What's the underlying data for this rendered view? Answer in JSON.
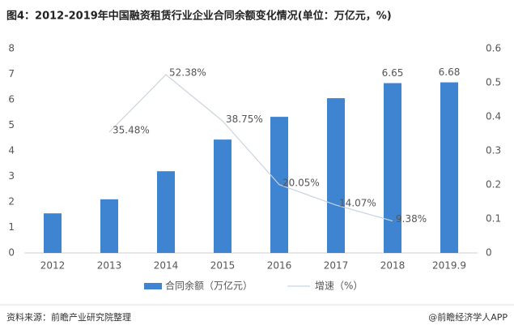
{
  "chart_data": {
    "type": "bar-line",
    "title": "图4：2012-2019年中国融资租赁行业企业合同余额变化情况(单位：万亿元，%)",
    "categories": [
      "2012",
      "2013",
      "2014",
      "2015",
      "2016",
      "2017",
      "2018",
      "2019.9"
    ],
    "series": [
      {
        "name": "合同余额（万亿元）",
        "type": "bar",
        "color": "#3f84d0",
        "values": [
          1.55,
          2.1,
          3.2,
          4.44,
          5.33,
          6.06,
          6.65,
          6.68
        ],
        "value_labels": [
          null,
          null,
          null,
          null,
          null,
          null,
          "6.65",
          "6.68"
        ]
      },
      {
        "name": "增速（%）",
        "type": "line",
        "axis": "y2",
        "color": "#c8d3e0",
        "values": [
          null,
          0.3548,
          0.5238,
          0.3875,
          0.2005,
          0.1407,
          0.0938,
          null
        ],
        "value_labels": [
          null,
          "35.48%",
          "52.38%",
          "38.75%",
          "20.05%",
          "14.07%",
          "9.38%",
          null
        ]
      }
    ],
    "ylim": [
      0,
      8
    ],
    "yticks": [
      0,
      1,
      2,
      3,
      4,
      5,
      6,
      7,
      8
    ],
    "y2lim": [
      0,
      0.6
    ],
    "y2ticks": [
      0,
      0.1,
      0.2,
      0.3,
      0.4,
      0.5,
      0.6
    ],
    "source": "资料来源：前瞻产业研究院整理",
    "credit": "@前瞻经济学人APP"
  }
}
